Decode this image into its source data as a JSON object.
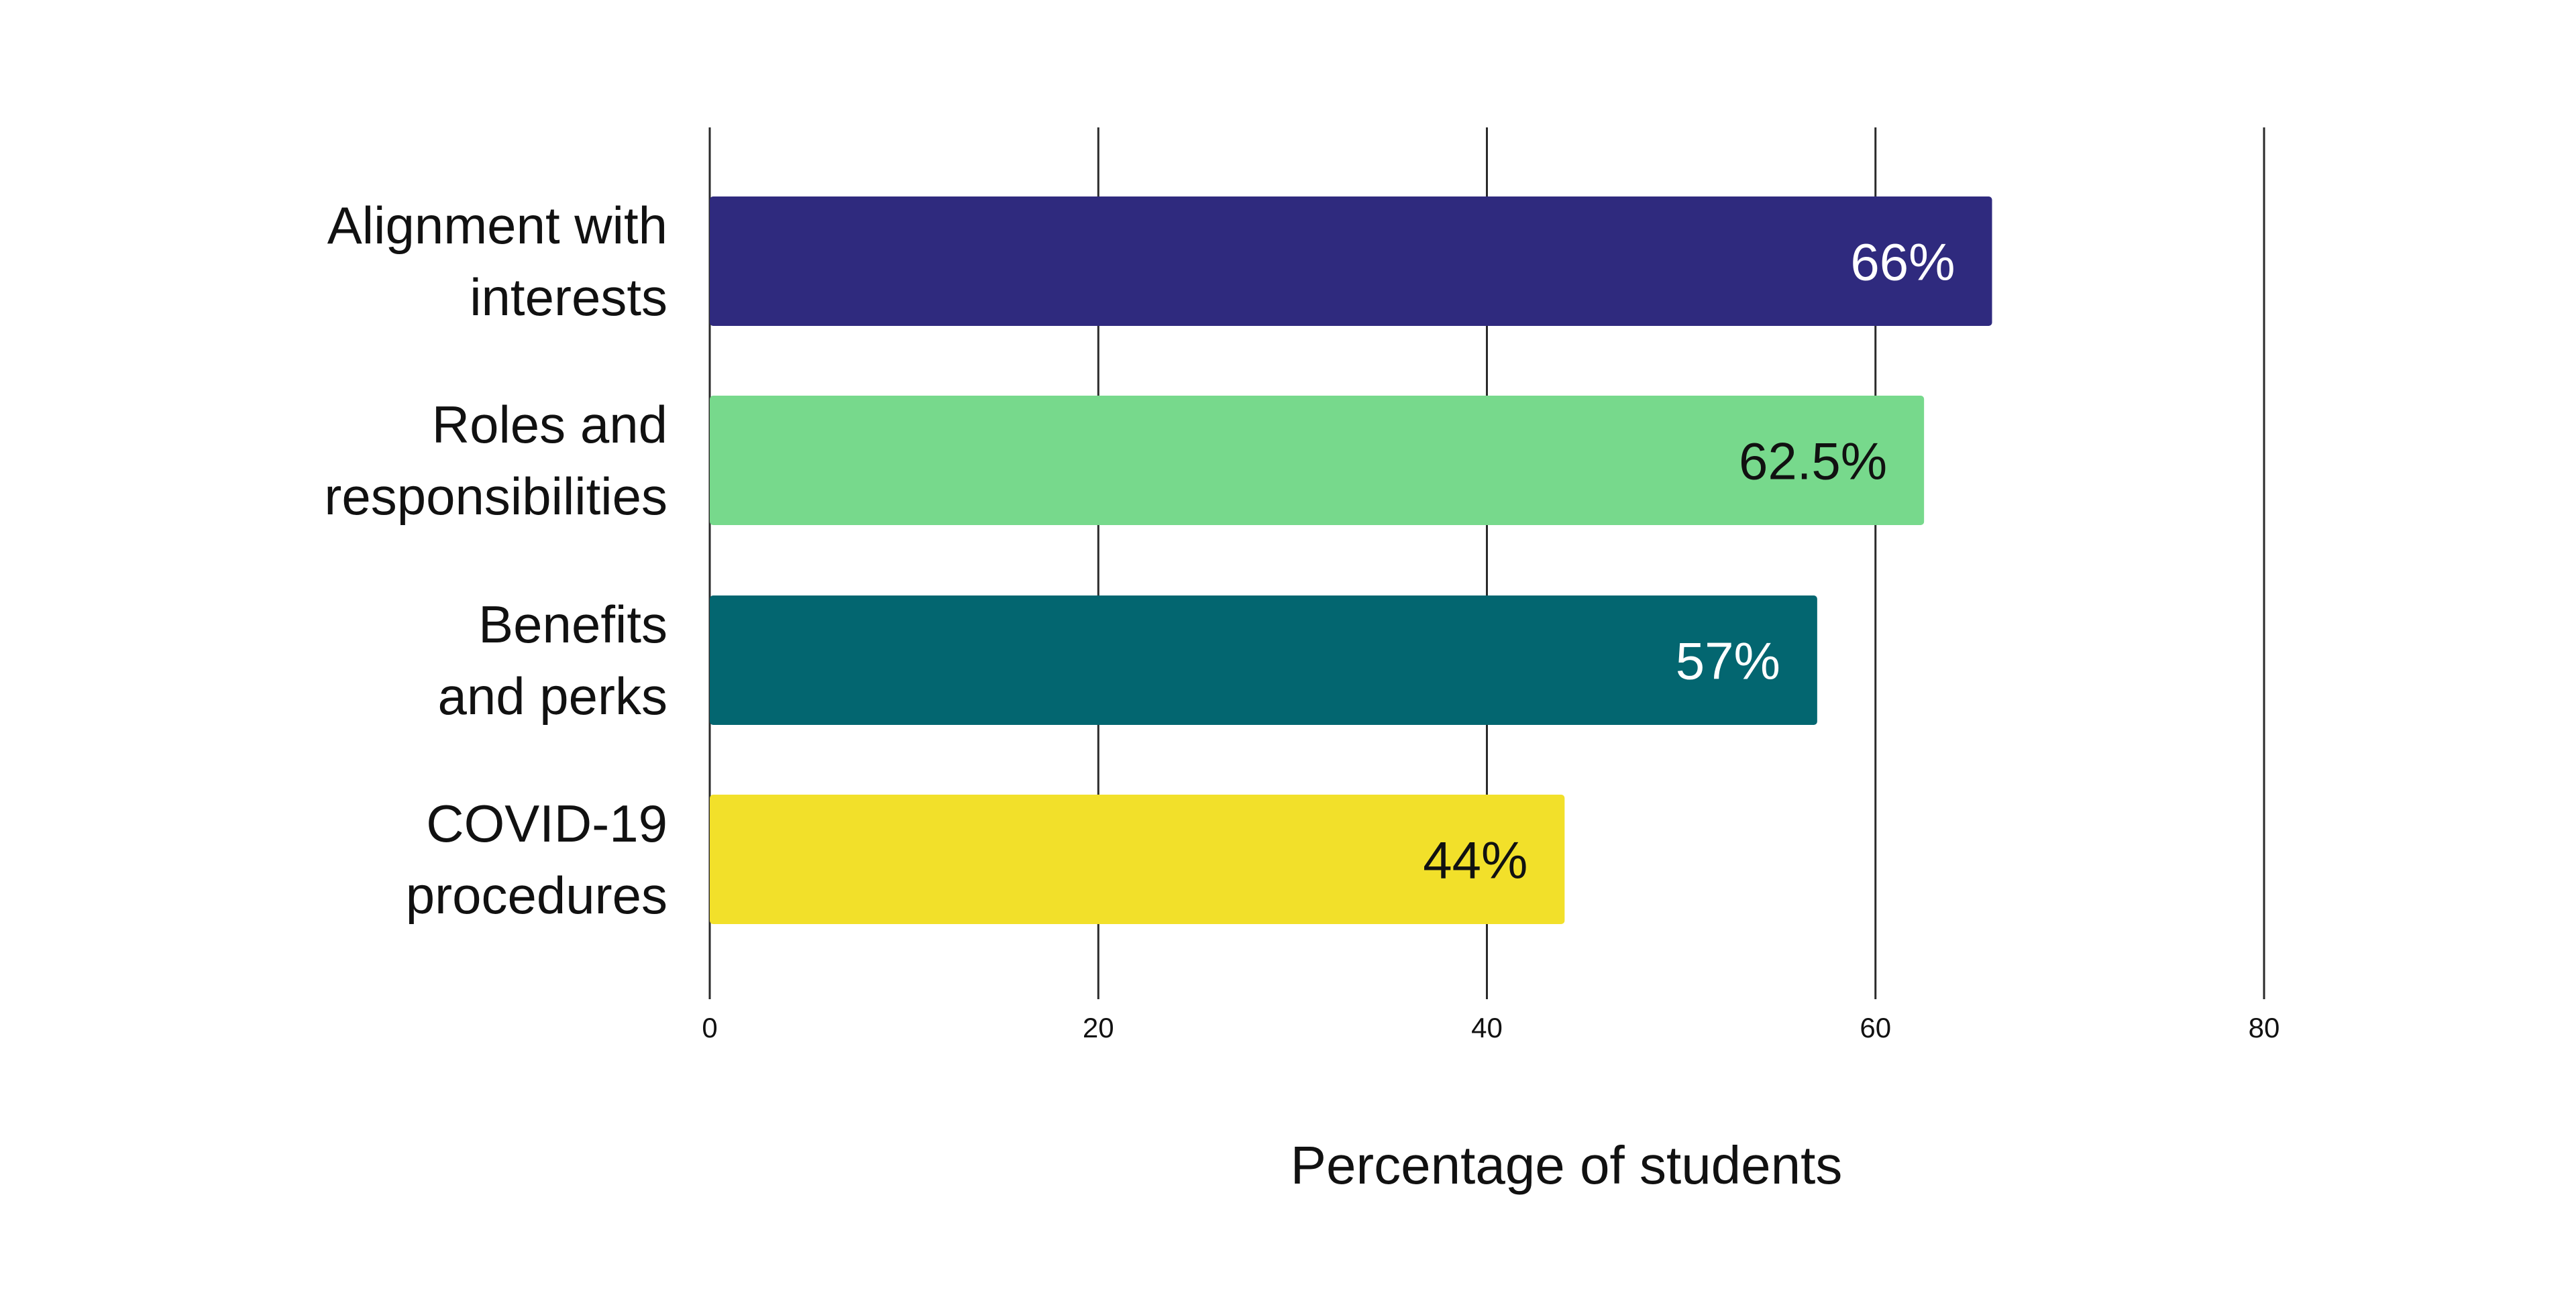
{
  "chart_data": {
    "type": "bar",
    "orientation": "horizontal",
    "categories": [
      [
        "Alignment with",
        "interests"
      ],
      [
        "Roles and",
        "responsibilities"
      ],
      [
        "Benefits",
        "and perks"
      ],
      [
        "COVID-19",
        "procedures"
      ]
    ],
    "values": [
      66,
      62.5,
      57,
      44
    ],
    "value_labels": [
      "66%",
      "62.5%",
      "57%",
      "44%"
    ],
    "bar_colors": [
      "#2f2a7e",
      "#77d98c",
      "#036670",
      "#f2e02a"
    ],
    "value_label_colors": [
      "#ffffff",
      "#111111",
      "#ffffff",
      "#111111"
    ],
    "xlabel": "Percentage of students",
    "ylabel": "",
    "xlim": [
      0,
      80
    ],
    "xticks": [
      0,
      20,
      40,
      60,
      80
    ],
    "xtick_labels": [
      "0",
      "20",
      "40",
      "60",
      "80"
    ],
    "grid": "vertical",
    "legend": "none"
  }
}
